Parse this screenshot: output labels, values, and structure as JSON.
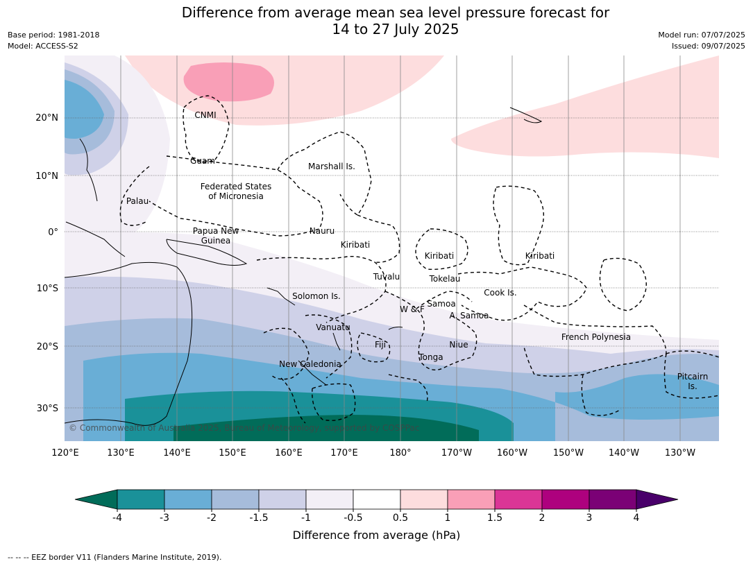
{
  "title_line1": "Difference from average mean sea level pressure forecast for",
  "title_line2": "14 to 27 July 2025",
  "base_period": "Base period: 1981-2018",
  "model": "Model: ACCESS-S2",
  "model_run": "Model run: 07/07/2025",
  "issued": "Issued: 09/07/2025",
  "copyright": "© Commonwealth of Australia 2025, Bureau of Meteorology, supported by COSPPac",
  "lon_ticks": [
    "120°E",
    "130°E",
    "140°E",
    "150°E",
    "160°E",
    "170°E",
    "180°",
    "170°W",
    "160°W",
    "150°W",
    "140°W",
    "130°W"
  ],
  "lat_ticks": [
    "20°N",
    "10°N",
    "0°",
    "10°S",
    "20°S",
    "30°S"
  ],
  "region_labels": {
    "cnmi": "CNMI",
    "guam": "Guam",
    "marshall": "Marshall Is.",
    "fsm_1": "Federated States",
    "fsm_2": "of Micronesia",
    "palau": "Palau",
    "png_1": "Papua New",
    "png_2": "Guinea",
    "nauru": "Nauru",
    "kiribati_w": "Kiribati",
    "kiribati_c": "Kiribati",
    "kiribati_e": "Kiribati",
    "tuvalu": "Tuvalu",
    "tokelau": "Tokelau",
    "cook": "Cook Is.",
    "solomon": "Solomon Is.",
    "wf": "W & F",
    "samoa": "Samoa",
    "asamoa": "A. Samoa",
    "vanuatu": "Vanuatu",
    "fiji": "Fiji",
    "niue": "Niue",
    "tonga": "Tonga",
    "frpoly": "French Polynesia",
    "new_cal": "New Caledonia",
    "pitcairn_1": "Pitcairn",
    "pitcairn_2": "Is."
  },
  "colorbar": {
    "ticks": [
      "-4",
      "-3",
      "-2",
      "-1.5",
      "-1",
      "-0.5",
      "0.5",
      "1",
      "1.5",
      "2",
      "3",
      "4"
    ],
    "colors": [
      "#1a9199",
      "#69aed6",
      "#a6bcdb",
      "#cfd1e8",
      "#f3eff6",
      "#ffffff",
      "#fdddde",
      "#f99fb7",
      "#db3596",
      "#ae017e",
      "#7b0176"
    ],
    "under_color": "#016c59",
    "over_color": "#49006a",
    "label": "Difference from average (hPa)"
  },
  "footnote": "--  --  -- EEZ border V11 (Flanders Marine Institute, 2019)."
}
